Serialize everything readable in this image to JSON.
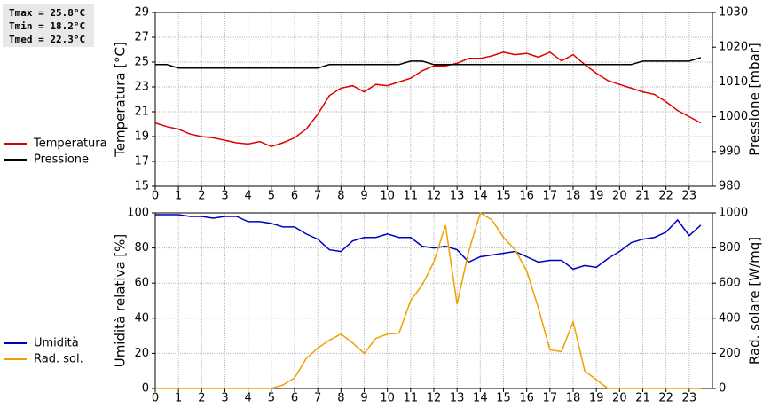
{
  "info": [
    "Tmax = 25.8°C",
    "Tmin = 18.2°C",
    "Tmed = 22.3°C"
  ],
  "chart_data": [
    {
      "type": "line",
      "y_label": "Temperatura [°C]",
      "y2_label": "Pressione [mbar]",
      "x": [
        0,
        0.5,
        1,
        1.5,
        2,
        2.5,
        3,
        3.5,
        4,
        4.5,
        5,
        5.5,
        6,
        6.5,
        7,
        7.5,
        8,
        8.5,
        9,
        9.5,
        10,
        10.5,
        11,
        11.5,
        12,
        12.5,
        13,
        13.5,
        14,
        14.5,
        15,
        15.5,
        16,
        16.5,
        17,
        17.5,
        18,
        18.5,
        19,
        19.5,
        20,
        20.5,
        21,
        21.5,
        22,
        22.5,
        23,
        23.5
      ],
      "xlim": [
        0,
        24
      ],
      "xticks": [
        0,
        1,
        2,
        3,
        4,
        5,
        6,
        7,
        8,
        9,
        10,
        11,
        12,
        13,
        14,
        15,
        16,
        17,
        18,
        19,
        20,
        21,
        22,
        23
      ],
      "ylim": [
        15,
        29
      ],
      "yticks": [
        15,
        17,
        19,
        21,
        23,
        25,
        27,
        29
      ],
      "y2lim": [
        980,
        1030
      ],
      "y2ticks": [
        980,
        990,
        1000,
        1010,
        1020,
        1030
      ],
      "grid": true,
      "series": [
        {
          "name": "Temperatura",
          "color": "#dd0000",
          "values": [
            20.1,
            19.8,
            19.6,
            19.2,
            19.0,
            18.9,
            18.7,
            18.5,
            18.4,
            18.6,
            18.2,
            18.5,
            18.9,
            19.6,
            20.8,
            22.3,
            22.9,
            23.1,
            22.6,
            23.2,
            23.1,
            23.4,
            23.7,
            24.3,
            24.7,
            24.7,
            24.9,
            25.3,
            25.3,
            25.5,
            25.8,
            25.6,
            25.7,
            25.4,
            25.8,
            25.1,
            25.6,
            24.8,
            24.1,
            23.5,
            23.2,
            22.9,
            22.6,
            22.4,
            21.8,
            21.1,
            20.6,
            20.1
          ]
        },
        {
          "name": "Pressione",
          "color": "#000000",
          "axis": "y2",
          "values": [
            1015,
            1015,
            1014,
            1014,
            1014,
            1014,
            1014,
            1014,
            1014,
            1014,
            1014,
            1014,
            1014,
            1014,
            1014,
            1015,
            1015,
            1015,
            1015,
            1015,
            1015,
            1015,
            1016,
            1016,
            1015,
            1015,
            1015,
            1015,
            1015,
            1015,
            1015,
            1015,
            1015,
            1015,
            1015,
            1015,
            1015,
            1015,
            1015,
            1015,
            1015,
            1015,
            1016,
            1016,
            1016,
            1016,
            1016,
            1017
          ]
        }
      ]
    },
    {
      "type": "line",
      "y_label": "Umidità relativa [%]",
      "y2_label": "Rad. solare [W/mq]",
      "x": [
        0,
        0.5,
        1,
        1.5,
        2,
        2.5,
        3,
        3.5,
        4,
        4.5,
        5,
        5.5,
        6,
        6.5,
        7,
        7.5,
        8,
        8.5,
        9,
        9.5,
        10,
        10.5,
        11,
        11.5,
        12,
        12.5,
        13,
        13.5,
        14,
        14.5,
        15,
        15.5,
        16,
        16.5,
        17,
        17.5,
        18,
        18.5,
        19,
        19.5,
        20,
        20.5,
        21,
        21.5,
        22,
        22.5,
        23,
        23.5
      ],
      "xlim": [
        0,
        24
      ],
      "xticks": [
        0,
        1,
        2,
        3,
        4,
        5,
        6,
        7,
        8,
        9,
        10,
        11,
        12,
        13,
        14,
        15,
        16,
        17,
        18,
        19,
        20,
        21,
        22,
        23
      ],
      "ylim": [
        0,
        100
      ],
      "yticks": [
        0,
        20,
        40,
        60,
        80,
        100
      ],
      "y2lim": [
        0,
        1000
      ],
      "y2ticks": [
        0,
        200,
        400,
        600,
        800,
        1000
      ],
      "grid": true,
      "series": [
        {
          "name": "Umidità",
          "color": "#0000c0",
          "values": [
            99,
            99,
            99,
            98,
            98,
            97,
            98,
            98,
            95,
            95,
            94,
            92,
            92,
            88,
            85,
            79,
            78,
            84,
            86,
            86,
            88,
            86,
            86,
            81,
            80,
            81,
            79,
            72,
            75,
            76,
            77,
            78,
            75,
            72,
            73,
            73,
            68,
            70,
            69,
            74,
            78,
            83,
            85,
            86,
            89,
            96,
            87,
            93
          ]
        },
        {
          "name": "Rad. sol.",
          "color": "#f0a000",
          "axis": "y2",
          "values": [
            0,
            0,
            0,
            0,
            0,
            0,
            0,
            0,
            0,
            0,
            0,
            20,
            60,
            170,
            230,
            275,
            310,
            260,
            200,
            285,
            310,
            315,
            500,
            590,
            720,
            930,
            480,
            780,
            1000,
            960,
            860,
            790,
            670,
            460,
            220,
            210,
            380,
            100,
            50,
            0,
            0,
            0,
            0,
            0,
            0,
            0,
            0,
            0
          ]
        }
      ]
    }
  ]
}
